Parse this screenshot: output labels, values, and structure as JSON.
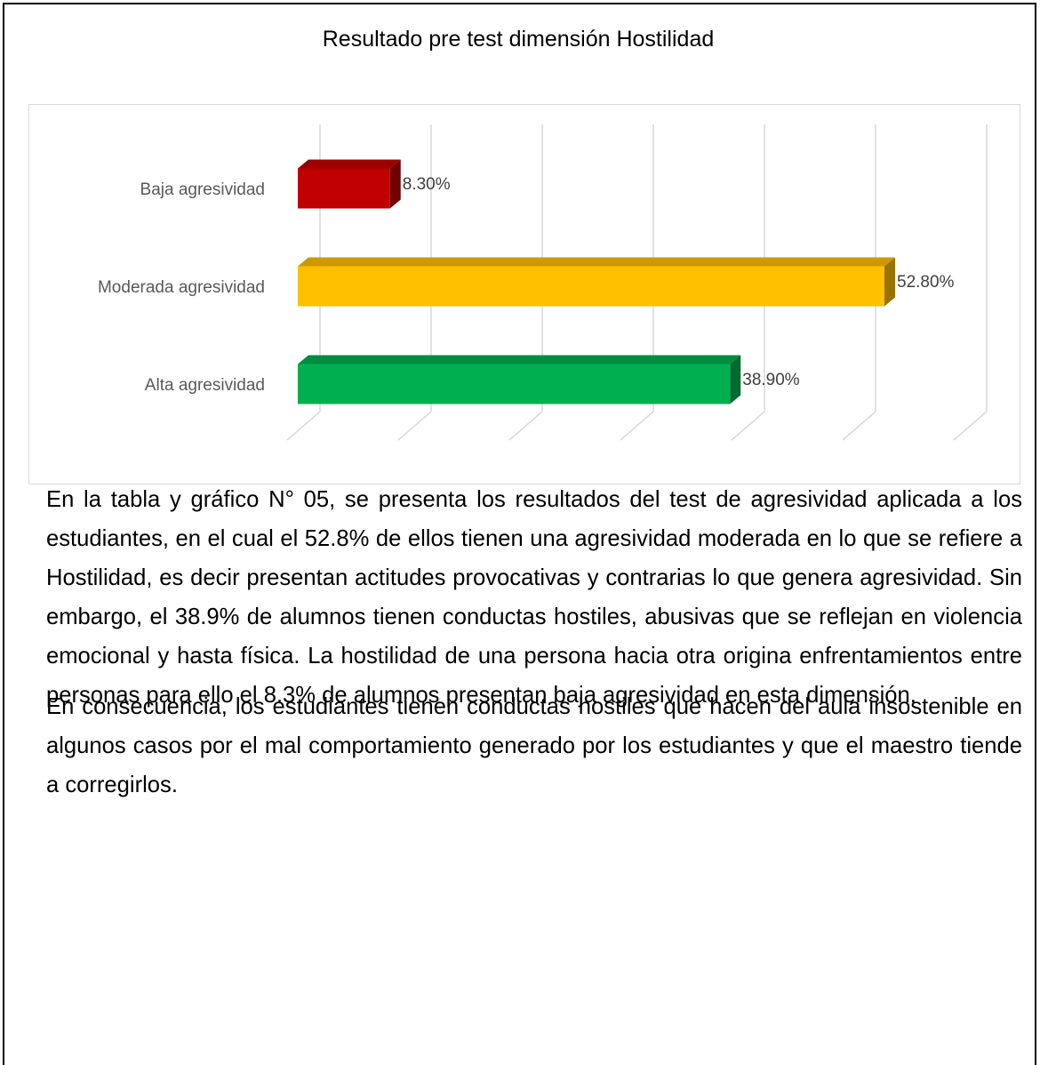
{
  "chart_data": {
    "type": "bar3d",
    "orientation": "horizontal",
    "title": "Resultado pre test dimensión Hostilidad",
    "categories": [
      "Baja agresividad",
      "Moderada agresividad",
      "Alta agresividad"
    ],
    "values": [
      8.3,
      52.8,
      38.9
    ],
    "value_labels": [
      "8.30%",
      "52.80%",
      "38.90%"
    ],
    "colors": [
      "#c00000",
      "#ffc000",
      "#00b050"
    ],
    "xlim": [
      0,
      60
    ],
    "xticks": [
      0,
      10,
      20,
      30,
      40,
      50,
      60
    ],
    "grid": true
  },
  "paragraphs": [
    "En la tabla y gráfico N° 05, se presenta los resultados del test de agresividad aplicada a los estudiantes, en el cual el 52.8% de ellos tienen una agresividad moderada en lo que se refiere a Hostilidad, es decir presentan actitudes provocativas y contrarias lo que genera agresividad. Sin embargo, el 38.9% de alumnos tienen conductas hostiles, abusivas que se reflejan en violencia emocional y hasta física. La hostilidad de una persona hacia otra origina enfrentamientos entre personas para ello el 8.3% de alumnos presentan baja agresividad en esta dimensión.",
    "En consecuencia, los estudiantes tienen conductas hostiles que hacen del aula insostenible en algunos casos por el mal comportamiento generado por los estudiantes y que el maestro tiende a corregirlos."
  ]
}
